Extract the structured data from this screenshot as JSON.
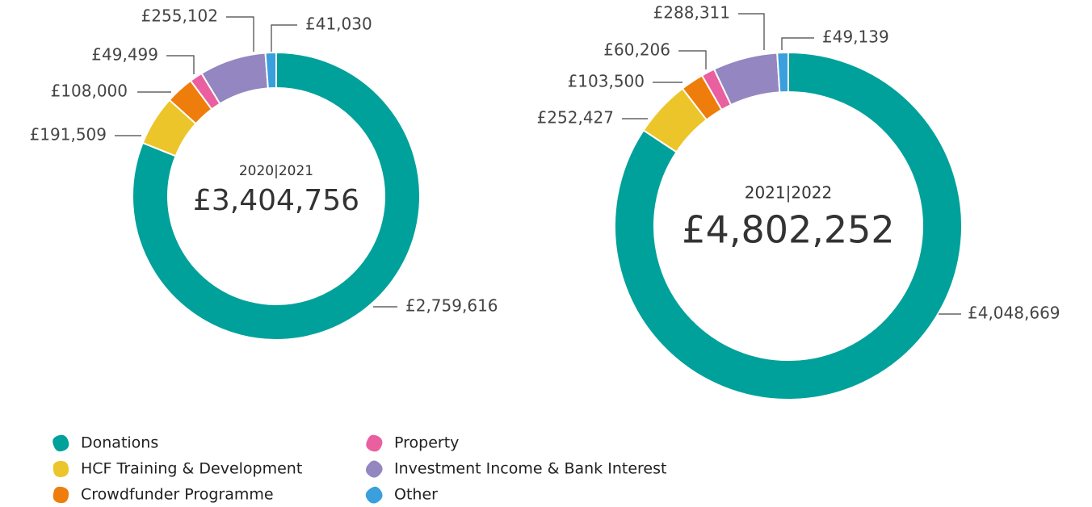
{
  "chart_data": [
    {
      "type": "donut",
      "title": "2020|2021",
      "total": "£3,404,756",
      "values": [
        2759616,
        191509,
        108000,
        49499,
        255102,
        41030
      ],
      "value_labels": [
        "£2,759,616",
        "£191,509",
        "£108,000",
        "£49,499",
        "£255,102",
        "£41,030"
      ]
    },
    {
      "type": "donut",
      "title": "2021|2022",
      "total": "£4,802,252",
      "values": [
        4048669,
        252427,
        103500,
        60206,
        288311,
        49139
      ],
      "value_labels": [
        "£4,048,669",
        "£252,427",
        "£103,500",
        "£60,206",
        "£288,311",
        "£49,139"
      ]
    }
  ],
  "legend": {
    "labels": [
      "Donations",
      "HCF Training & Development",
      "Crowdfunder Programme",
      "Property",
      "Investment Income & Bank Interest",
      "Other"
    ],
    "colors": [
      "#00a19a",
      "#ecc52a",
      "#ef7d0b",
      "#ea5f9f",
      "#9486c0",
      "#3a9fdc"
    ]
  }
}
